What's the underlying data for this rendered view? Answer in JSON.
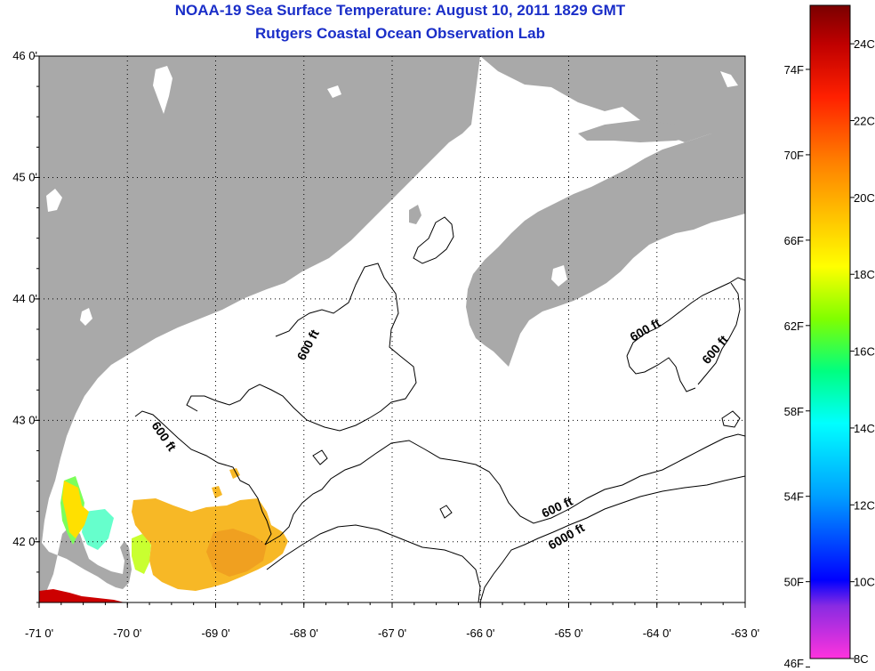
{
  "title": {
    "line1": "NOAA-19 Sea Surface Temperature:  August 10, 2011 1829 GMT",
    "line2": "Rutgers Coastal Ocean Observation Lab"
  },
  "map": {
    "lon_range": [
      -71,
      -63
    ],
    "lat_range": [
      41.5,
      46
    ],
    "lon_ticks": [
      {
        "value": -71,
        "label": "-71 0'"
      },
      {
        "value": -70,
        "label": "-70 0'"
      },
      {
        "value": -69,
        "label": "-69 0'"
      },
      {
        "value": -68,
        "label": "-68 0'"
      },
      {
        "value": -67,
        "label": "-67 0'"
      },
      {
        "value": -66,
        "label": "-66 0'"
      },
      {
        "value": -65,
        "label": "-65 0'"
      },
      {
        "value": -64,
        "label": "-64 0'"
      },
      {
        "value": -63,
        "label": "-63 0'"
      }
    ],
    "lat_ticks": [
      {
        "value": 46,
        "label": "46 0'"
      },
      {
        "value": 45,
        "label": "45 0'"
      },
      {
        "value": 44,
        "label": "44 0'"
      },
      {
        "value": 43,
        "label": "43 0'"
      },
      {
        "value": 42,
        "label": "42 0'"
      }
    ],
    "gridlines": true,
    "land_color": "#a9a9a9",
    "ocean_color": "#ffffff",
    "contour_labels": [
      "600 ft",
      "600 ft",
      "600 ft",
      "600 ft",
      "600 ft",
      "6000 ft"
    ]
  },
  "colorbar": {
    "celsius_range": [
      8,
      25
    ],
    "celsius_labels": [
      "24C",
      "22C",
      "20C",
      "18C",
      "16C",
      "14C",
      "12C",
      "10C",
      "8C"
    ],
    "fahrenheit_labels": [
      "74F",
      "70F",
      "66F",
      "62F",
      "58F",
      "54F",
      "50F",
      "46F"
    ],
    "colors": [
      "#ff33dd",
      "#8a2be2",
      "#0000ff",
      "#00a0ff",
      "#00ffff",
      "#00ff80",
      "#80ff00",
      "#ffff00",
      "#ffc000",
      "#ff8000",
      "#ff2000",
      "#c00000",
      "#7a0000"
    ]
  }
}
